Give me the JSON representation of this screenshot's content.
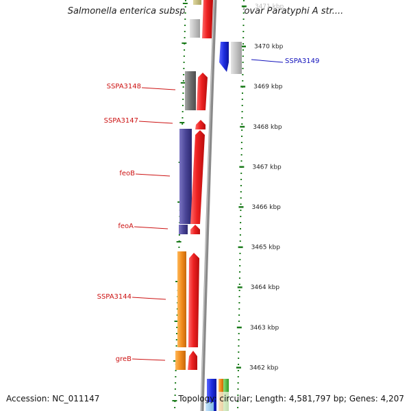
{
  "title": "Salmonella enterica subsp. enterica serovar Paratyphi A str....",
  "footer": {
    "accession": "Accession: NC_011147",
    "summary": "Topology: circular; Length: 4,581,797 bp; Genes: 4,207"
  },
  "colors": {
    "strand_plus": "#e8262a",
    "strand_minus_grey": "#8f8f8f",
    "feo_b": "#4a4597",
    "orange": "#f08b1d",
    "blue": "#1e2ee0",
    "label_red": "#cc1111",
    "label_blue": "#1010bb",
    "tick_green": "#1a7a1a",
    "axis_grey": "#8a8a8a"
  },
  "scale": {
    "unit": "kbp",
    "ticks": [
      {
        "kbp": 3471,
        "label": "3471 kbp"
      },
      {
        "kbp": 3470,
        "label": "3470 kbp"
      },
      {
        "kbp": 3469,
        "label": "3469 kbp"
      },
      {
        "kbp": 3468,
        "label": "3468 kbp"
      },
      {
        "kbp": 3467,
        "label": "3467 kbp"
      },
      {
        "kbp": 3466,
        "label": "3466 kbp"
      },
      {
        "kbp": 3465,
        "label": "3465 kbp"
      },
      {
        "kbp": 3464,
        "label": "3464 kbp"
      },
      {
        "kbp": 3463,
        "label": "3463 kbp"
      },
      {
        "kbp": 3462,
        "label": "3462 kbp"
      }
    ]
  },
  "genes": [
    {
      "name": "SSPA3149",
      "start_kbp": 3469.75,
      "end_kbp": 3470.1,
      "strand": "-",
      "color": "blue"
    },
    {
      "name": "SSPA3148",
      "start_kbp": 3468.75,
      "end_kbp": 3469.15,
      "strand": "+",
      "color": "red"
    },
    {
      "name": "SSPA3147",
      "start_kbp": 3467.92,
      "end_kbp": 3468.15,
      "strand": "+",
      "color": "red"
    },
    {
      "name": "feoB",
      "start_kbp": 3465.3,
      "end_kbp": 3467.9,
      "strand": "+",
      "color": "red"
    },
    {
      "name": "feoA",
      "start_kbp": 3465.05,
      "end_kbp": 3465.3,
      "strand": "+",
      "color": "red"
    },
    {
      "name": "SSPA3144",
      "start_kbp": 3462.9,
      "end_kbp": 3464.95,
      "strand": "+",
      "color": "red"
    },
    {
      "name": "greB",
      "start_kbp": 3462.45,
      "end_kbp": 3462.9,
      "strand": "+",
      "color": "red"
    }
  ],
  "labels": [
    {
      "text": "SSPA3149",
      "color": "label_blue"
    },
    {
      "text": "SSPA3148",
      "color": "label_red"
    },
    {
      "text": "SSPA3147",
      "color": "label_red"
    },
    {
      "text": "feoB",
      "color": "label_red"
    },
    {
      "text": "feoA",
      "color": "label_red"
    },
    {
      "text": "SSPA3144",
      "color": "label_red"
    },
    {
      "text": "greB",
      "color": "label_red"
    }
  ]
}
